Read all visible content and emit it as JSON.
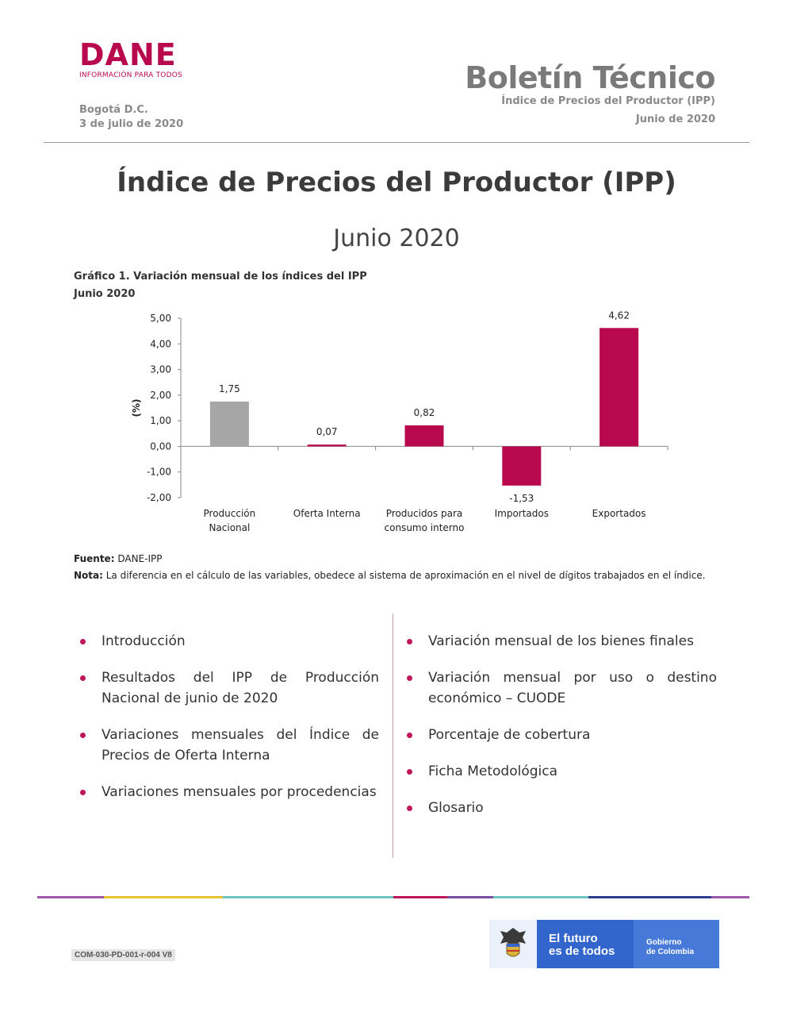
{
  "header": {
    "logo_word": "DANE",
    "logo_tagline": "INFORMACIÓN PARA TODOS",
    "city": "Bogotá D.C.",
    "date": "3 de julio de 2020",
    "bulletin_title": "Boletín Técnico",
    "bulletin_subtitle": "Índice de Precios del Productor (IPP)",
    "bulletin_period": "Junio de 2020"
  },
  "title": "Índice de Precios del Productor (IPP)",
  "subtitle": "Junio 2020",
  "chart_caption": {
    "line1": "Gráfico 1. Variación mensual de los índices del IPP",
    "line2": "Junio 2020"
  },
  "chart_data": {
    "type": "bar",
    "categories": [
      "Producción Nacional",
      "Oferta Interna",
      "Producidos para consumo interno",
      "Importados",
      "Exportados"
    ],
    "category_lines": [
      [
        "Producción",
        "Nacional"
      ],
      [
        "Oferta Interna"
      ],
      [
        "Producidos para",
        "consumo interno"
      ],
      [
        "Importados"
      ],
      [
        "Exportados"
      ]
    ],
    "values": [
      1.75,
      0.07,
      0.82,
      -1.53,
      4.62
    ],
    "value_labels": [
      "1,75",
      "0,07",
      "0,82",
      "-1,53",
      "4,62"
    ],
    "bar_colors": [
      "#a6a6a6",
      "#b8094f",
      "#b8094f",
      "#b8094f",
      "#b8094f"
    ],
    "ylabel": "(%)",
    "ylim": [
      -2,
      5
    ],
    "yticks": [
      5,
      4,
      3,
      2,
      1,
      0,
      -1,
      -2
    ],
    "ytick_labels": [
      "5,00",
      "4,00",
      "3,00",
      "2,00",
      "1,00",
      "0,00",
      "-1,00",
      "-2,00"
    ],
    "grid": false
  },
  "source": {
    "fuente_label": "Fuente:",
    "fuente_text": "DANE-IPP",
    "nota_label": "Nota:",
    "nota_text": "La diferencia en el cálculo de las variables, obedece al sistema de aproximación en el nivel de dígitos trabajados en el índice."
  },
  "contents_left": [
    "Introducción",
    "Resultados del IPP de Producción Nacional de junio de 2020",
    "Variaciones mensuales del Índice de Precios de Oferta Interna",
    "Variaciones mensuales por procedencias"
  ],
  "contents_right": [
    "Variación mensual de los bienes finales",
    "Variación mensual por uso o destino económico – CUODE",
    "Porcentaje de cobertura",
    "Ficha Metodológica",
    "Glosario"
  ],
  "footer": {
    "code": "COM-030-PD-001-r-004 V8",
    "slogan_line1": "El futuro",
    "slogan_line2": "es de todos",
    "gov_line1": "Gobierno",
    "gov_line2": "de Colombia",
    "stripe_colors": [
      "#9b59a6",
      "#e4c530",
      "#6cc5c0",
      "#c0175a",
      "#7a4ea0",
      "#6cc5c0",
      "#2b3e8f",
      "#9b59a6"
    ]
  }
}
